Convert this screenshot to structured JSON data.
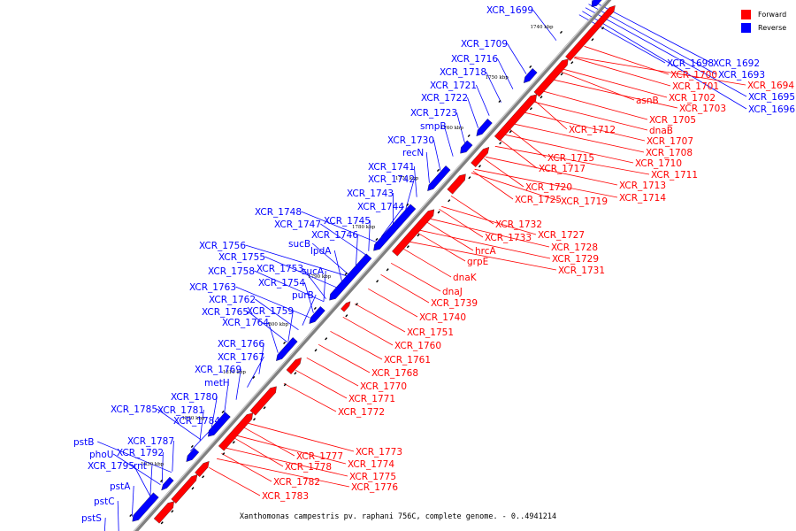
{
  "colors": {
    "forward": "#ff0000",
    "reverse": "#0000ff",
    "backbone": "#808080"
  },
  "legend": {
    "forward_label": "Forward",
    "reverse_label": "Reverse"
  },
  "caption": "Xanthomonas campestris pv. raphani 756C, complete genome. - 0..4941214",
  "ticks": [
    "1740 kbp",
    "1750 kbp",
    "1760 kbp",
    "1770 kbp",
    "1780 kbp",
    "1790 kbp",
    "1800 kbp",
    "1810 kbp",
    "1820 kbp",
    "1830 kbp"
  ],
  "reverse_labels": [
    "XCR_1699",
    "XCR_1709",
    "XCR_1716",
    "XCR_1718",
    "XCR_1721",
    "XCR_1722",
    "XCR_1723",
    "smpB",
    "XCR_1730",
    "recN",
    "XCR_1741",
    "XCR_1742",
    "XCR_1743",
    "XCR_1744",
    "XCR_1745",
    "XCR_1746",
    "XCR_1748",
    "XCR_1747",
    "sucB",
    "lpdA",
    "XCR_1756",
    "XCR_1755",
    "XCR_1753",
    "sucA",
    "XCR_1758",
    "XCR_1754",
    "XCR_1763",
    "purB",
    "XCR_1762",
    "XCR_1765",
    "XCR_1759",
    "XCR_1764",
    "XCR_1766",
    "XCR_1767",
    "XCR_1769",
    "metH",
    "XCR_1780",
    "XCR_1785",
    "XCR_1781",
    "XCR_1784",
    "pstB",
    "XCR_1787",
    "phoU",
    "XCR_1792",
    "XCR_1795",
    "rnt",
    "pstA",
    "pstC",
    "pstS",
    "XCR_1698",
    "XCR_1692",
    "XCR_1693",
    "XCR_1695",
    "XCR_1696"
  ],
  "forward_labels": [
    "XCR_1700",
    "XCR_1694",
    "XCR_1701",
    "asnB",
    "XCR_1702",
    "XCR_1703",
    "XCR_1705",
    "dnaB",
    "XCR_1707",
    "XCR_1708",
    "XCR_1710",
    "XCR_1711",
    "XCR_1712",
    "XCR_1713",
    "XCR_1714",
    "XCR_1715",
    "XCR_1717",
    "XCR_1720",
    "XCR_1725",
    "XCR_1719",
    "XCR_1732",
    "XCR_1733",
    "XCR_1727",
    "XCR_1728",
    "XCR_1729",
    "XCR_1731",
    "hrcA",
    "grpE",
    "dnaK",
    "dnaJ",
    "XCR_1739",
    "XCR_1740",
    "XCR_1751",
    "XCR_1760",
    "XCR_1761",
    "XCR_1768",
    "XCR_1770",
    "XCR_1771",
    "XCR_1772",
    "XCR_1773",
    "XCR_1774",
    "XCR_1775",
    "XCR_1776",
    "XCR_1777",
    "XCR_1778",
    "XCR_1782",
    "XCR_1783"
  ]
}
